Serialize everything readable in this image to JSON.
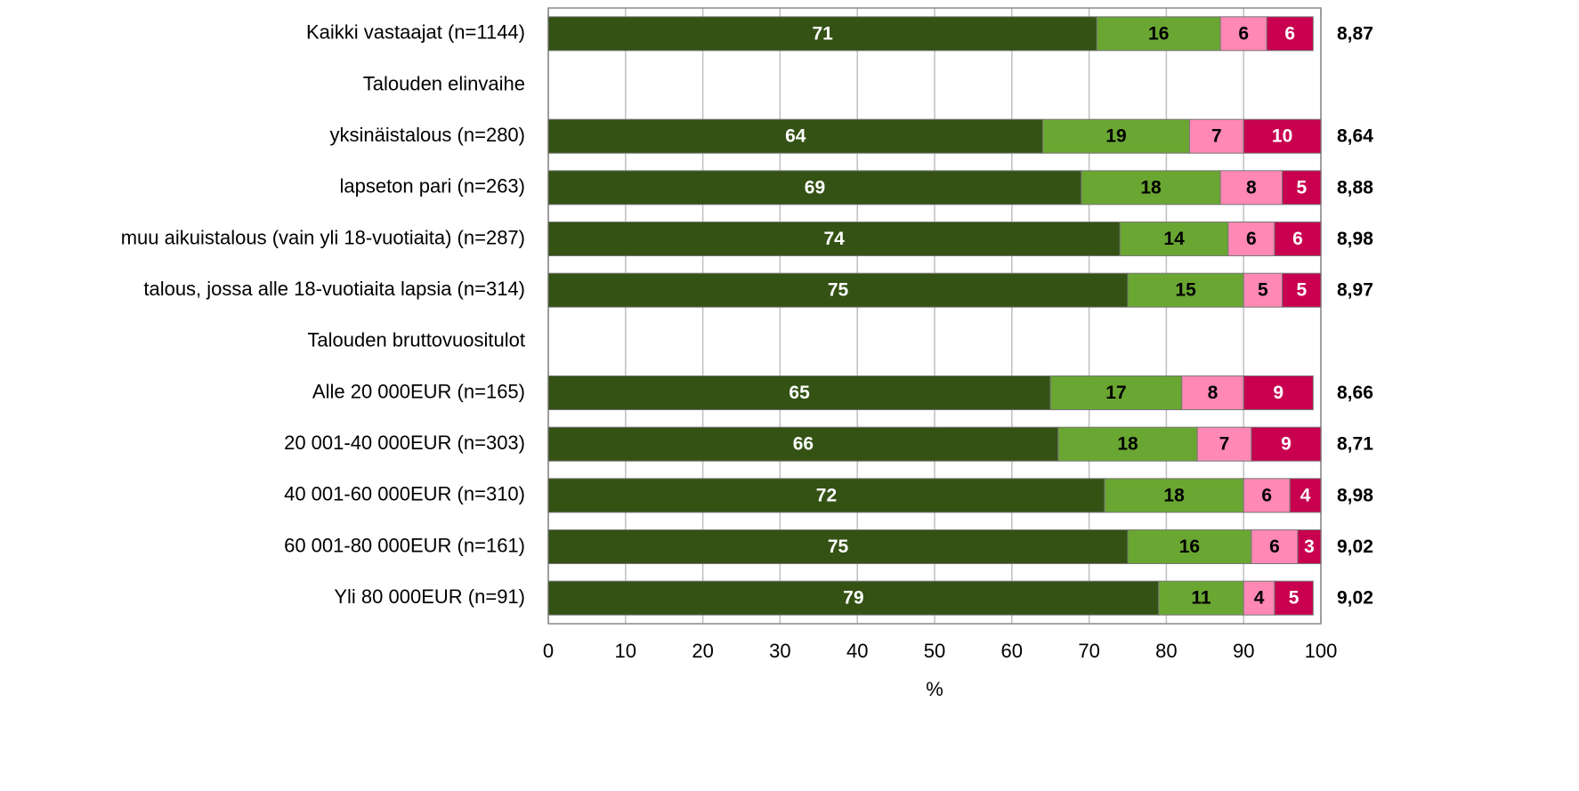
{
  "chart_data": {
    "type": "stacked-barh",
    "categories": [
      "Kaikki vastaajat (n=1144)",
      "Talouden elinvaihe",
      "yksinäistalous (n=280)",
      "lapseton pari (n=263)",
      "muu aikuistalous (vain yli 18-vuotiaita) (n=287)",
      "talous, jossa alle 18-vuotiaita lapsia (n=314)",
      "Talouden bruttovuositulot",
      "Alle 20 000EUR (n=165)",
      "20 001-40 000EUR (n=303)",
      "40 001-60 000EUR (n=310)",
      "60 001-80 000EUR (n=161)",
      "Yli 80 000EUR (n=91)"
    ],
    "series": [
      {
        "color": "#335214",
        "label_color": "#ffffff",
        "values": [
          71,
          null,
          64,
          69,
          74,
          75,
          null,
          65,
          66,
          72,
          75,
          79
        ]
      },
      {
        "color": "#6aa632",
        "label_color": "#000000",
        "values": [
          16,
          null,
          19,
          18,
          14,
          15,
          null,
          17,
          18,
          18,
          16,
          11
        ]
      },
      {
        "color": "#ff88b4",
        "label_color": "#000000",
        "values": [
          6,
          null,
          7,
          8,
          6,
          5,
          null,
          8,
          7,
          6,
          6,
          4
        ]
      },
      {
        "color": "#c8004f",
        "label_color": "#ffffff",
        "values": [
          6,
          null,
          10,
          5,
          6,
          5,
          null,
          9,
          9,
          4,
          3,
          5
        ]
      }
    ],
    "means": {
      "values": [
        8.87,
        null,
        8.64,
        8.88,
        8.98,
        8.97,
        null,
        8.66,
        8.71,
        8.98,
        9.02,
        9.02
      ],
      "value_labels": [
        "8,87",
        null,
        "8,64",
        "8,88",
        "8,98",
        "8,97",
        null,
        "8,66",
        "8,71",
        "8,98",
        "9,02",
        "9,02"
      ]
    },
    "xlabel": "%",
    "xlim": [
      0,
      100
    ],
    "xticks": [
      0,
      10,
      20,
      30,
      40,
      50,
      60,
      70,
      80,
      90,
      100
    ],
    "grid": true
  }
}
